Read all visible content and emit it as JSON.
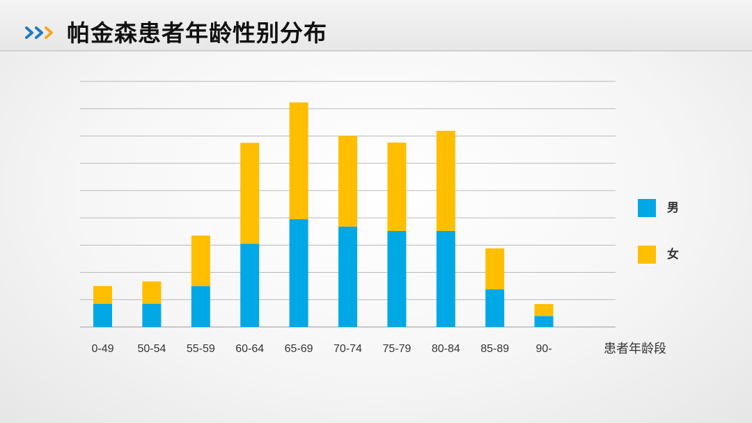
{
  "header": {
    "title": "帕金森患者年龄性别分布"
  },
  "colors": {
    "male": "#00A8E6",
    "female": "#FFBE00",
    "chevron_blue": "#1F7AC2",
    "chevron_orange": "#F5A623",
    "grid": "#b8b8b8"
  },
  "chart_data": {
    "type": "bar",
    "stacked": true,
    "categories": [
      "0-49",
      "50-54",
      "55-59",
      "60-64",
      "65-69",
      "70-74",
      "75-79",
      "80-84",
      "85-89",
      "90-"
    ],
    "series": [
      {
        "name": "男",
        "values": [
          0.85,
          0.85,
          1.5,
          3.05,
          3.95,
          3.68,
          3.52,
          3.52,
          1.38,
          0.4
        ]
      },
      {
        "name": "女",
        "values": [
          0.65,
          0.82,
          1.85,
          3.7,
          4.28,
          3.32,
          3.24,
          3.67,
          1.5,
          0.44
        ]
      }
    ],
    "xlabel": "患者年龄段",
    "ylabel": "",
    "ylim": [
      0,
      9
    ],
    "grid": true,
    "y_tick_labels_shown": false,
    "legend_position": "right"
  }
}
